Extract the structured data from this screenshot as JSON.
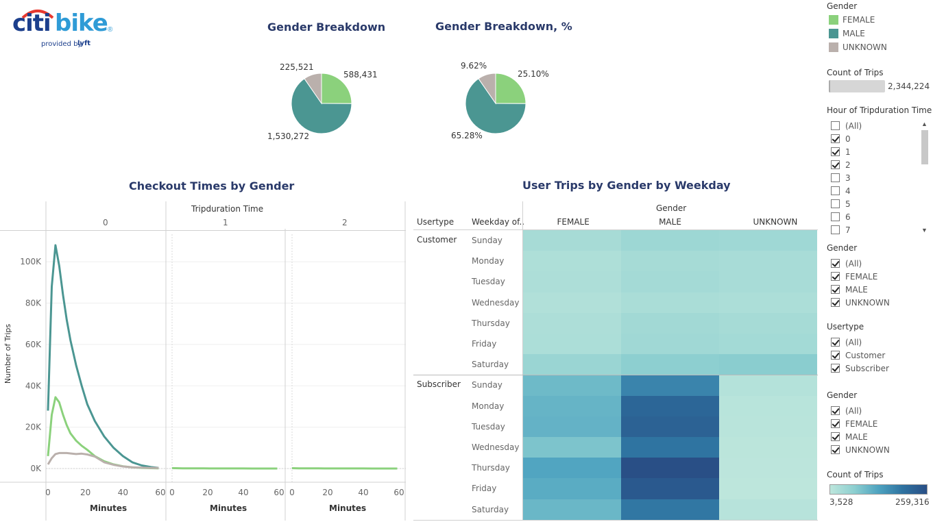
{
  "logo": {
    "part1": "citi",
    "part2": "bike",
    "registered": "®",
    "provided_by": "provided by",
    "lyft": "lyft"
  },
  "colors": {
    "female": "#8bd17c",
    "male": "#4b9692",
    "unknown": "#bab0ac",
    "title": "#2a3a6a"
  },
  "pie_counts": {
    "title": "Gender Breakdown",
    "labels": {
      "female": "588,431",
      "male": "1,530,272",
      "unknown": "225,521"
    }
  },
  "pie_percent": {
    "title": "Gender Breakdown, %",
    "labels": {
      "female": "25.10%",
      "male": "65.28%",
      "unknown": "9.62%"
    }
  },
  "line_chart": {
    "title": "Checkout Times by Gender",
    "column_header": "Tripduration Time",
    "panels": [
      "0",
      "1",
      "2"
    ],
    "ylabel": "Number of Trips",
    "xlabel": "Minutes",
    "y_ticks": [
      "100K",
      "80K",
      "60K",
      "40K",
      "20K",
      "0K"
    ],
    "x_ticks": [
      "0",
      "20",
      "40",
      "60"
    ]
  },
  "heatmap": {
    "title": "User Trips by Gender by Weekday",
    "col_group_header": "Gender",
    "row_header_1": "Usertype",
    "row_header_2": "Weekday of..",
    "columns": [
      "FEMALE",
      "MALE",
      "UNKNOWN"
    ],
    "groups": [
      "Customer",
      "Subscriber"
    ],
    "weekdays": [
      "Sunday",
      "Monday",
      "Tuesday",
      "Wednesday",
      "Thursday",
      "Friday",
      "Saturday"
    ]
  },
  "sidebar": {
    "gender_legend_title": "Gender",
    "gender_legend_items": [
      "FEMALE",
      "MALE",
      "UNKNOWN"
    ],
    "count_title": "Count of Trips",
    "count_value": "2,344,224",
    "hour_title": "Hour of Tripduration Time",
    "hour_items": [
      {
        "label": "(All)",
        "checked": false
      },
      {
        "label": "0",
        "checked": true
      },
      {
        "label": "1",
        "checked": true
      },
      {
        "label": "2",
        "checked": true
      },
      {
        "label": "3",
        "checked": false
      },
      {
        "label": "4",
        "checked": false
      },
      {
        "label": "5",
        "checked": false
      },
      {
        "label": "6",
        "checked": false
      },
      {
        "label": "7",
        "checked": false
      }
    ],
    "gender_filter_title": "Gender",
    "gender_filter_items": [
      "(All)",
      "FEMALE",
      "MALE",
      "UNKNOWN"
    ],
    "usertype_title": "Usertype",
    "usertype_items": [
      "(All)",
      "Customer",
      "Subscriber"
    ],
    "gender_filter2_title": "Gender",
    "gender_filter2_items": [
      "(All)",
      "FEMALE",
      "MALE",
      "UNKNOWN"
    ],
    "color_scale_title": "Count of Trips",
    "color_scale_min": "3,528",
    "color_scale_max": "259,316"
  },
  "chart_data": [
    {
      "type": "pie",
      "title": "Gender Breakdown",
      "categories": [
        "FEMALE",
        "MALE",
        "UNKNOWN"
      ],
      "values": [
        588431,
        1530272,
        225521
      ]
    },
    {
      "type": "pie",
      "title": "Gender Breakdown, %",
      "categories": [
        "FEMALE",
        "MALE",
        "UNKNOWN"
      ],
      "values": [
        25.1,
        65.28,
        9.62
      ]
    },
    {
      "type": "line",
      "title": "Checkout Times by Gender",
      "xlabel": "Minutes",
      "ylabel": "Number of Trips",
      "ylim": [
        0,
        110000
      ],
      "xlim": [
        0,
        60
      ],
      "panels": [
        "0",
        "1",
        "2"
      ],
      "x": [
        0,
        2,
        4,
        6,
        8,
        10,
        12,
        15,
        18,
        21,
        25,
        30,
        35,
        40,
        45,
        50,
        55,
        59
      ],
      "series": [
        {
          "name": "MALE",
          "panel": "0",
          "values": [
            28000,
            88000,
            108000,
            98000,
            84000,
            72000,
            62000,
            50000,
            40000,
            31000,
            23000,
            15500,
            10000,
            6000,
            3000,
            1500,
            700,
            300
          ]
        },
        {
          "name": "FEMALE",
          "panel": "0",
          "values": [
            6000,
            26000,
            34500,
            32000,
            26000,
            21000,
            17000,
            13500,
            11000,
            9000,
            6000,
            3500,
            2000,
            1100,
            600,
            300,
            150,
            80
          ]
        },
        {
          "name": "UNKNOWN",
          "panel": "0",
          "values": [
            2000,
            5000,
            7000,
            7500,
            7500,
            7500,
            7300,
            7000,
            7200,
            6800,
            5800,
            3000,
            1800,
            1000,
            600,
            400,
            300,
            250
          ]
        },
        {
          "name": "FEMALE",
          "panel": "1",
          "values": [
            200,
            150,
            120,
            100,
            90,
            80,
            70,
            60,
            50,
            40,
            30,
            25,
            20,
            18,
            15,
            12,
            10,
            8
          ]
        },
        {
          "name": "FEMALE",
          "panel": "2",
          "values": [
            150,
            120,
            100,
            90,
            80,
            70,
            60,
            50,
            45,
            40,
            30,
            25,
            20,
            18,
            15,
            12,
            10,
            8
          ]
        }
      ]
    },
    {
      "type": "heatmap",
      "title": "User Trips by Gender by Weekday",
      "columns": [
        "FEMALE",
        "MALE",
        "UNKNOWN"
      ],
      "rows": [
        "Customer Sunday",
        "Customer Monday",
        "Customer Tuesday",
        "Customer Wednesday",
        "Customer Thursday",
        "Customer Friday",
        "Customer Saturday",
        "Subscriber Sunday",
        "Subscriber Monday",
        "Subscriber Tuesday",
        "Subscriber Wednesday",
        "Subscriber Thursday",
        "Subscriber Friday",
        "Subscriber Saturday"
      ],
      "range": [
        3528,
        259316
      ],
      "values": [
        [
          18000,
          27000,
          25000
        ],
        [
          12000,
          19000,
          17000
        ],
        [
          13000,
          20000,
          17000
        ],
        [
          10000,
          15000,
          14000
        ],
        [
          13000,
          22000,
          19000
        ],
        [
          14000,
          24000,
          21000
        ],
        [
          30000,
          44000,
          46000
        ],
        [
          72000,
          150000,
          8000
        ],
        [
          80000,
          205000,
          5500
        ],
        [
          82000,
          215000,
          5000
        ],
        [
          58000,
          175000,
          4200
        ],
        [
          102000,
          259316,
          3800
        ],
        [
          92000,
          235000,
          3528
        ],
        [
          76000,
          170000,
          6000
        ]
      ]
    }
  ]
}
